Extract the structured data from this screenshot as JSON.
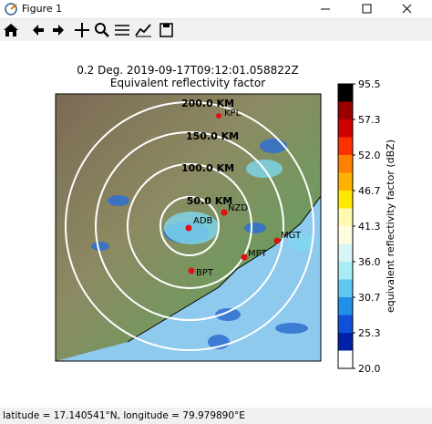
{
  "window": {
    "title": "Figure 1"
  },
  "plot": {
    "title_line1": "0.2 Deg. 2019-09-17T09:12:01.058822Z",
    "title_line2": "Equivalent reflectivity factor",
    "ring_labels": [
      "50.0 KM",
      "100.0 KM",
      "150.0 KM",
      "200.0 KM"
    ],
    "station_labels": [
      "KPL",
      "ADB",
      "NZD",
      "MGT",
      "MPT",
      "BPT"
    ]
  },
  "colorbar": {
    "label": "equivalent reflectivity factor (dBZ)",
    "ticks": [
      "95.5",
      "57.3",
      "52.0",
      "46.7",
      "41.3",
      "36.0",
      "30.7",
      "25.3",
      "20.0"
    ]
  },
  "status": {
    "text": "latitude = 17.140541°N, longitude = 79.979890°E"
  }
}
